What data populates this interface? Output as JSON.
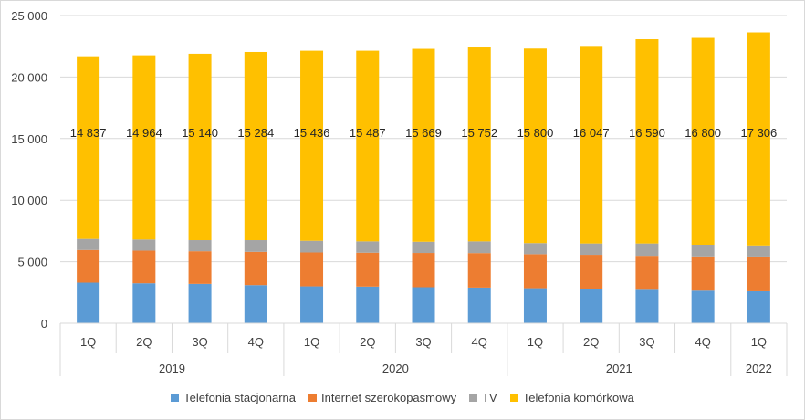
{
  "chart_data": {
    "type": "bar",
    "stacked": true,
    "categories": [
      "1Q",
      "2Q",
      "3Q",
      "4Q",
      "1Q",
      "2Q",
      "3Q",
      "4Q",
      "1Q",
      "2Q",
      "3Q",
      "4Q",
      "1Q"
    ],
    "years": [
      {
        "label": "2019",
        "count": 4
      },
      {
        "label": "2020",
        "count": 4
      },
      {
        "label": "2021",
        "count": 4
      },
      {
        "label": "2022",
        "count": 1
      }
    ],
    "series": [
      {
        "name": "Telefonia stacjonarna",
        "color": "#5b9bd5",
        "values": [
          3300,
          3250,
          3200,
          3100,
          3000,
          2980,
          2930,
          2900,
          2850,
          2780,
          2720,
          2650,
          2600
        ]
      },
      {
        "name": "Internet szerokopasmowy",
        "color": "#ed7d31",
        "values": [
          2650,
          2650,
          2650,
          2700,
          2750,
          2750,
          2780,
          2800,
          2760,
          2780,
          2760,
          2780,
          2820
        ]
      },
      {
        "name": "TV",
        "color": "#a5a5a5",
        "values": [
          900,
          900,
          900,
          950,
          950,
          920,
          910,
          950,
          900,
          920,
          1000,
          950,
          900
        ]
      },
      {
        "name": "Telefonia komórkowa",
        "color": "#ffc000",
        "values": [
          14837,
          14964,
          15140,
          15284,
          15436,
          15487,
          15669,
          15752,
          15800,
          16047,
          16590,
          16800,
          17306
        ],
        "labels": [
          "14 837",
          "14 964",
          "15 140",
          "15 284",
          "15 436",
          "15 487",
          "15 669",
          "15 752",
          "15 800",
          "16 047",
          "16 590",
          "16 800",
          "17 306"
        ]
      }
    ],
    "ylim": [
      0,
      25000
    ],
    "yticks": [
      0,
      5000,
      10000,
      15000,
      20000,
      25000
    ],
    "ytick_labels": [
      "0",
      "5 000",
      "10 000",
      "15 000",
      "20 000",
      "25 000"
    ],
    "grid": true,
    "legend_position": "bottom",
    "label_value_position": 15500
  }
}
